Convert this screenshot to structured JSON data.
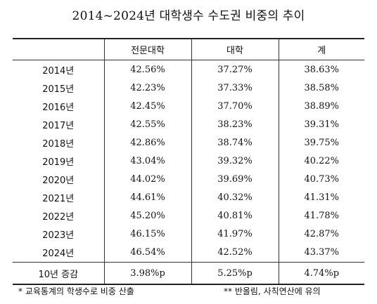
{
  "title": "2014~2024년 대학생수 수도권 비중의 추이",
  "table": {
    "headers": [
      "",
      "전문대학",
      "대학",
      "계"
    ],
    "rows": [
      {
        "year": "2014년",
        "college": "42.56%",
        "university": "37.27%",
        "total": "38.63%"
      },
      {
        "year": "2015년",
        "college": "42.23%",
        "university": "37.33%",
        "total": "38.58%"
      },
      {
        "year": "2016년",
        "college": "42.45%",
        "university": "37.70%",
        "total": "38.89%"
      },
      {
        "year": "2017년",
        "college": "42.55%",
        "university": "38.23%",
        "total": "39.31%"
      },
      {
        "year": "2018년",
        "college": "42.86%",
        "university": "38.74%",
        "total": "39.75%"
      },
      {
        "year": "2019년",
        "college": "43.04%",
        "university": "39.32%",
        "total": "40.22%"
      },
      {
        "year": "2020년",
        "college": "44.02%",
        "university": "39.69%",
        "total": "40.73%"
      },
      {
        "year": "2021년",
        "college": "44.61%",
        "university": "40.32%",
        "total": "41.31%"
      },
      {
        "year": "2022년",
        "college": "45.20%",
        "university": "40.81%",
        "total": "41.78%"
      },
      {
        "year": "2023년",
        "college": "46.15%",
        "university": "41.97%",
        "total": "42.87%"
      },
      {
        "year": "2024년",
        "college": "46.54%",
        "university": "42.52%",
        "total": "43.37%"
      }
    ],
    "summary": {
      "label": "10년 증감",
      "college": "3.98%p",
      "university": "5.25%p",
      "total": "4.74%p"
    }
  },
  "notes": [
    "* 교육통계의 학생수로 비중 산출",
    "** 반올림, 사칙연산에 유의"
  ]
}
